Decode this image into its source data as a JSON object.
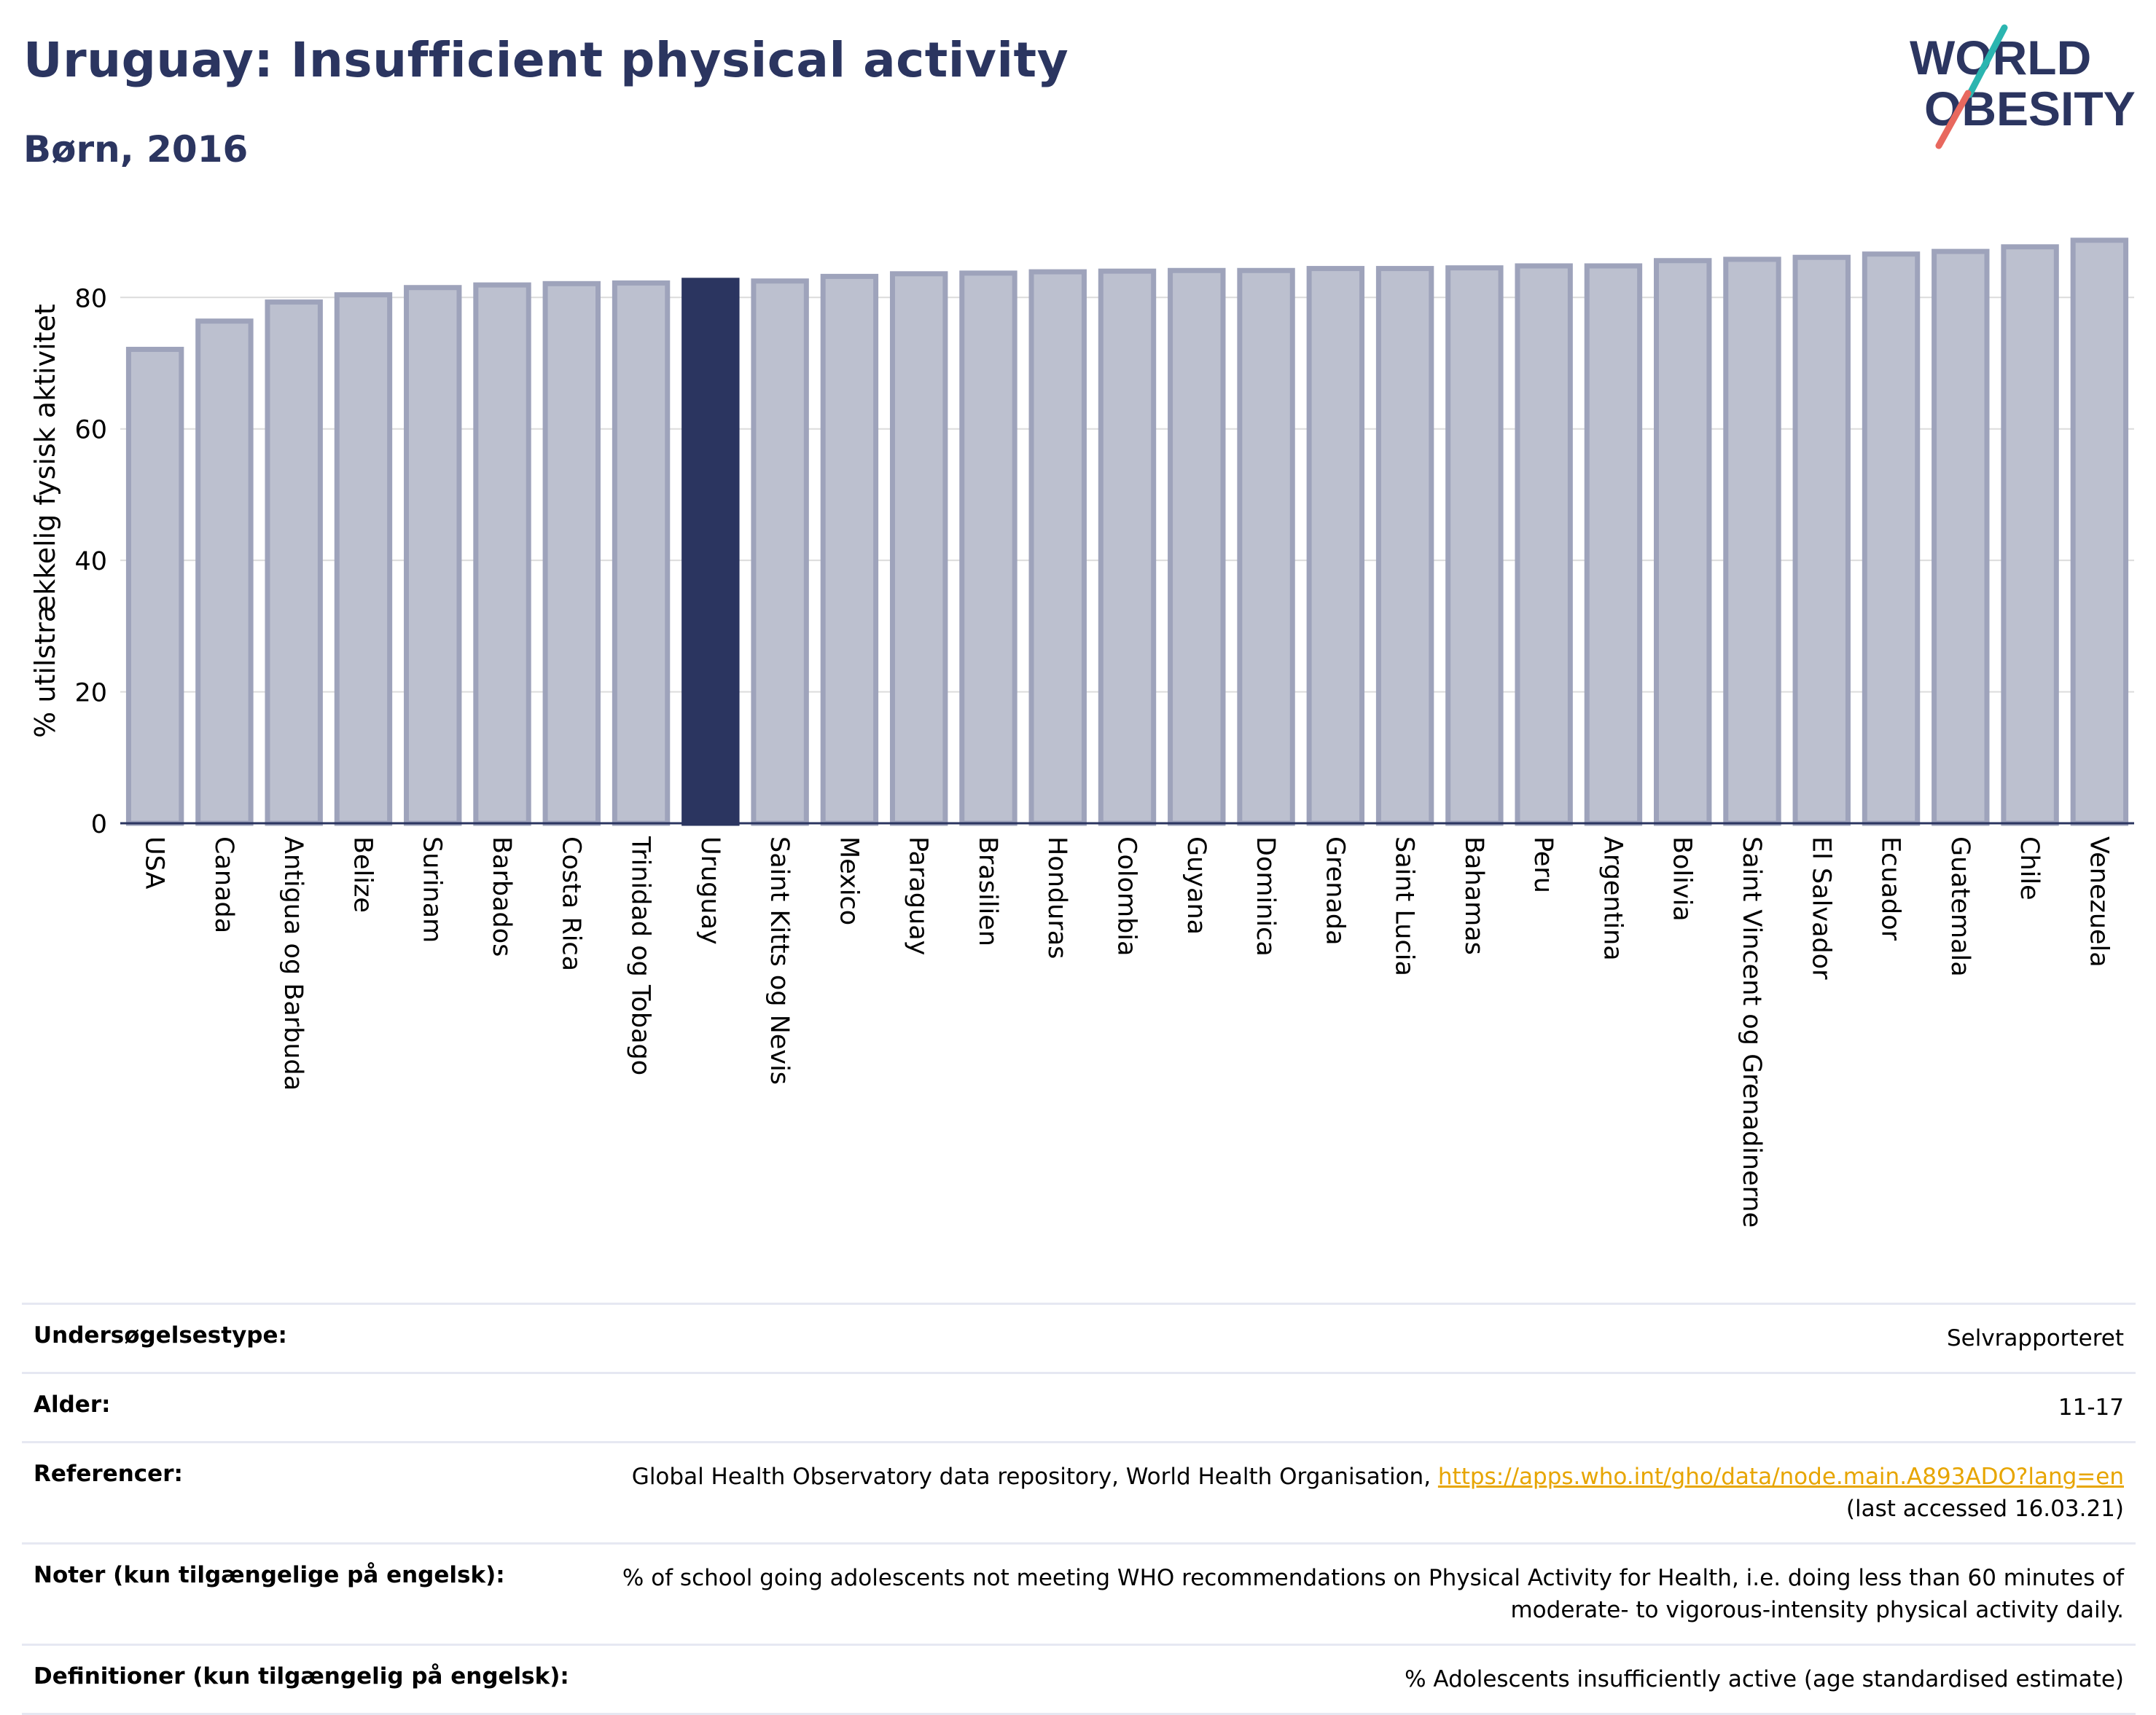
{
  "header": {
    "title": "Uruguay: Insufficient physical activity",
    "subtitle": "Børn, 2016",
    "logo_line1": "WORLD",
    "logo_line2": "OBESITY"
  },
  "colors": {
    "title": "#2b3560",
    "bar_default": "#bcc0cf",
    "bar_default_stroke": "#9ea3bb",
    "bar_highlight": "#2b3560",
    "grid": "#dcdcdc",
    "link": "#e7a500",
    "logo_teal": "#2bb5b0",
    "logo_red": "#e8685e"
  },
  "chart_data": {
    "type": "bar",
    "ylabel": "% utilstrækkelig fysisk aktivitet",
    "ylim": [
      0,
      92
    ],
    "yticks": [
      0,
      20,
      40,
      60,
      80
    ],
    "grid": true,
    "highlight": "Uruguay",
    "categories": [
      "USA",
      "Canada",
      "Antigua og Barbuda",
      "Belize",
      "Surinam",
      "Barbados",
      "Costa Rica",
      "Trinidad og Tobago",
      "Uruguay",
      "Saint Kitts og Nevis",
      "Mexico",
      "Paraguay",
      "Brasilien",
      "Honduras",
      "Colombia",
      "Guyana",
      "Dominica",
      "Grenada",
      "Saint Lucia",
      "Bahamas",
      "Peru",
      "Argentina",
      "Bolivia",
      "Saint Vincent og Grenadinerne",
      "El Salvador",
      "Ecuador",
      "Guatemala",
      "Chile",
      "Venezuela"
    ],
    "values": [
      72.1,
      76.4,
      79.3,
      80.4,
      81.5,
      81.9,
      82.1,
      82.2,
      82.6,
      82.5,
      83.2,
      83.6,
      83.7,
      83.9,
      84.0,
      84.1,
      84.1,
      84.4,
      84.4,
      84.5,
      84.8,
      84.8,
      85.6,
      85.8,
      86.1,
      86.6,
      87.0,
      87.7,
      88.7
    ]
  },
  "metadata": {
    "survey_type_label": "Undersøgelsestype:",
    "survey_type_value": "Selvrapporteret",
    "age_label": "Alder:",
    "age_value": "11-17",
    "references_label": "Referencer:",
    "references_text": "Global Health Observatory data repository, World Health Organisation, ",
    "references_link": "https://apps.who.int/gho/data/node.main.A893ADO?lang=en",
    "references_accessed": "(last accessed 16.03.21)",
    "notes_label": "Noter (kun tilgængelige på engelsk):",
    "notes_line1": "% of school going adolescents not meeting WHO recommendations on Physical Activity for Health, i.e. doing less than 60 minutes of",
    "notes_line2": "moderate- to vigorous-intensity physical activity daily.",
    "definitions_label": "Definitioner (kun tilgængelig på engelsk):",
    "definitions_value": "% Adolescents insufficiently active (age standardised estimate)"
  }
}
